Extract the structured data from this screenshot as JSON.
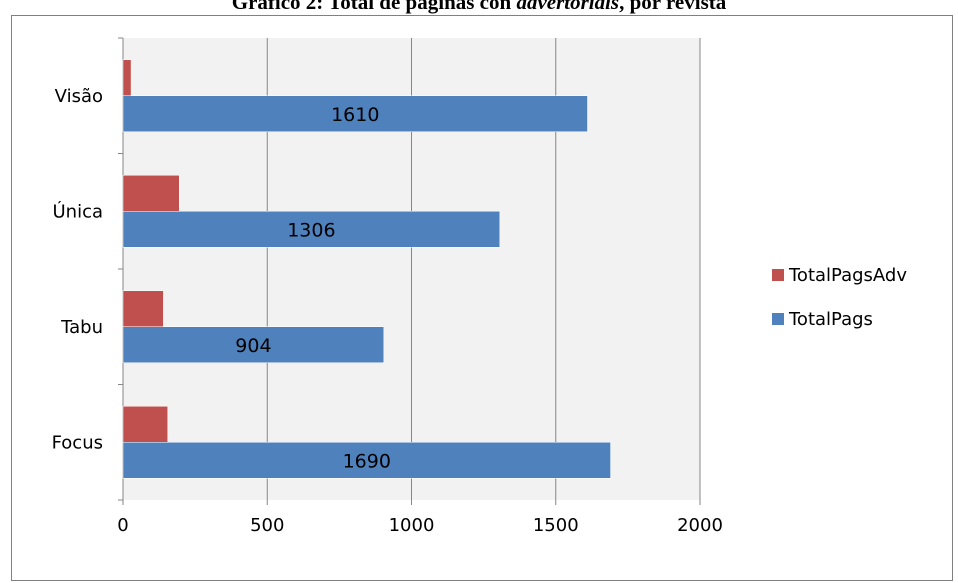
{
  "title": {
    "part1": "Gráfico 2: Total de páginas con ",
    "part2": "advertorials",
    "part3": ", por revista"
  },
  "chart_data": {
    "type": "bar",
    "orientation": "horizontal",
    "categories": [
      "Focus",
      "Tabu",
      "Única",
      "Visão"
    ],
    "series": [
      {
        "name": "TotalPagsAdv",
        "values": [
          155,
          140,
          195,
          28
        ],
        "color": "#c0504d"
      },
      {
        "name": "TotalPags",
        "values": [
          1690,
          904,
          1306,
          1610
        ],
        "color": "#4f81bd"
      }
    ],
    "data_labels": {
      "TotalPags": [
        "1690",
        "904",
        "1306",
        "1610"
      ]
    },
    "xlim": [
      0,
      2000
    ],
    "xticks": [
      "0",
      "500",
      "1000",
      "1500",
      "2000"
    ],
    "grid": "vertical",
    "legend": "right"
  }
}
